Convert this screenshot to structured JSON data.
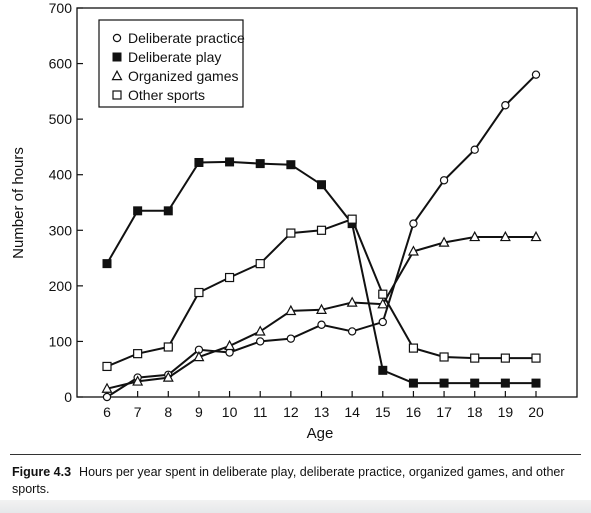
{
  "caption": {
    "label": "Figure 4.3",
    "text": "Hours per year spent in deliberate play, deliberate practice, organized games, and other sports."
  },
  "chart_data": {
    "type": "line",
    "xlabel": "Age",
    "ylabel": "Number of hours",
    "x": [
      6,
      7,
      8,
      9,
      10,
      11,
      12,
      13,
      14,
      15,
      16,
      17,
      18,
      19,
      20
    ],
    "xlim": [
      6,
      20
    ],
    "ylim": [
      0,
      700
    ],
    "yticks": [
      0,
      100,
      200,
      300,
      400,
      500,
      600,
      700
    ],
    "grid": false,
    "legend_position": "top-left",
    "series": [
      {
        "name": "Deliberate practice",
        "marker": "open-circle",
        "color": "#111111",
        "values": [
          0,
          35,
          40,
          85,
          80,
          100,
          105,
          130,
          118,
          135,
          312,
          390,
          445,
          525,
          580
        ]
      },
      {
        "name": "Deliberate play",
        "marker": "filled-square",
        "color": "#111111",
        "values": [
          240,
          335,
          335,
          422,
          423,
          420,
          418,
          382,
          312,
          48,
          25,
          25,
          25,
          25,
          25
        ]
      },
      {
        "name": "Organized games",
        "marker": "open-triangle",
        "color": "#111111",
        "values": [
          15,
          28,
          35,
          72,
          92,
          118,
          155,
          157,
          170,
          167,
          262,
          278,
          288,
          288,
          288
        ]
      },
      {
        "name": "Other sports",
        "marker": "open-square",
        "color": "#111111",
        "values": [
          55,
          78,
          90,
          188,
          215,
          240,
          295,
          300,
          320,
          185,
          88,
          72,
          70,
          70,
          70
        ]
      }
    ]
  }
}
